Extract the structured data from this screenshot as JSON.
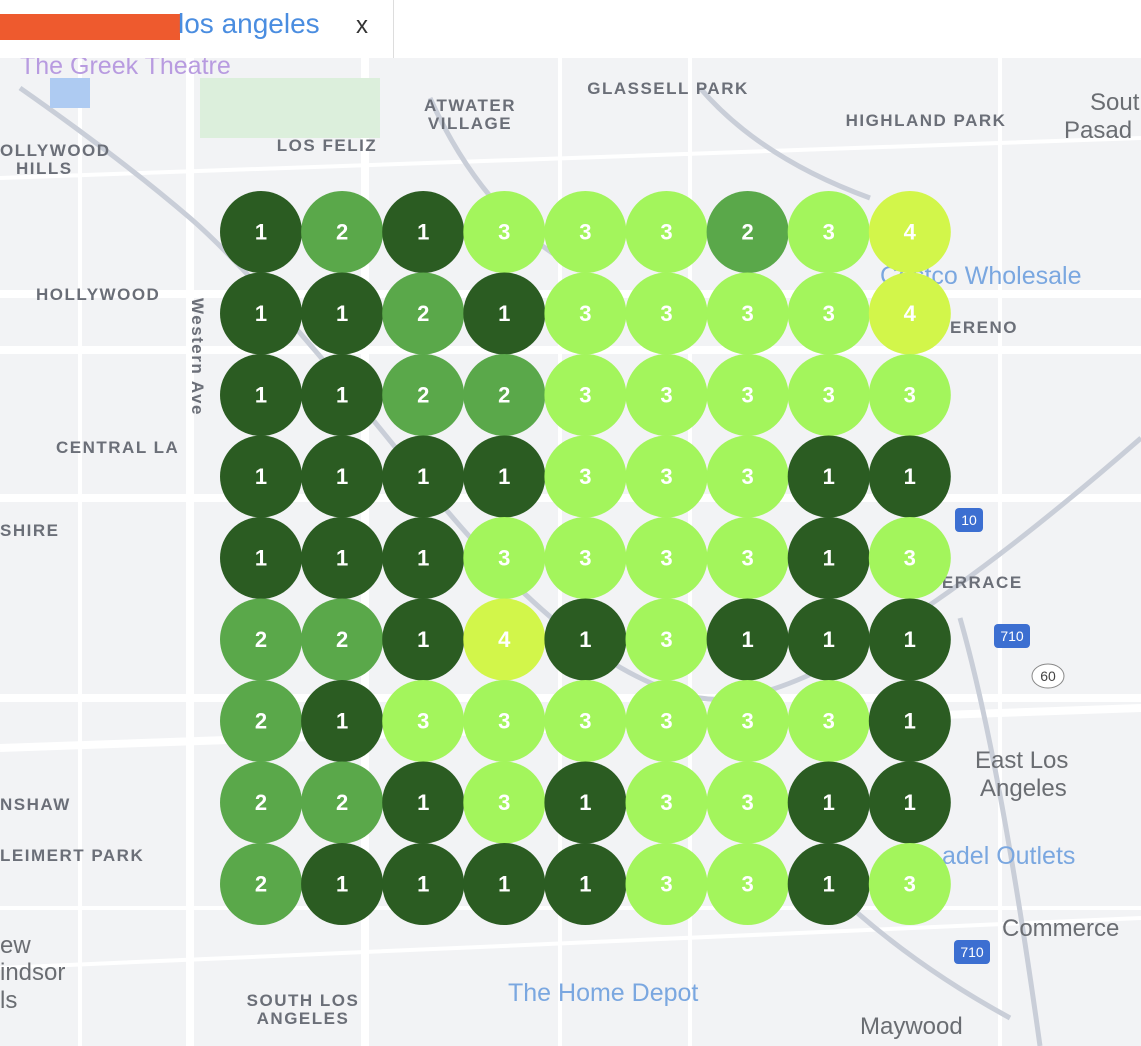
{
  "header": {
    "query": "los angeles",
    "close": "x"
  },
  "map_labels": [
    "The Greek Theatre",
    "ATWATER",
    "VILLAGE",
    "GLASSELL PARK",
    "HIGHLAND PARK",
    "Sout",
    "Pasad",
    "LOS FELIZ",
    "OLLYWOOD",
    "HILLS",
    "HOLLYWOOD",
    "Western Ave",
    "CENTRAL LA",
    "SHIRE",
    "Costco Wholesale",
    "ERENO",
    "East Los",
    "Angeles",
    "adel Outlets",
    "Commerce",
    "Maywood",
    "The Home Depot",
    "SOUTH LOS",
    "ANGELES",
    "LEIMERT PARK",
    "NSHAW",
    "ew",
    "indsor",
    "ls",
    "TERRACE",
    "10",
    "710",
    "60",
    "710"
  ],
  "grid": {
    "rank_colors": {
      "1": "#2b5c22",
      "2": "#5aa84a",
      "3": "#a3f55c",
      "4": "#d2f64a"
    },
    "rows": [
      [
        1,
        2,
        1,
        3,
        3,
        3,
        2,
        3,
        4
      ],
      [
        1,
        1,
        2,
        1,
        3,
        3,
        3,
        3,
        4
      ],
      [
        1,
        1,
        2,
        2,
        3,
        3,
        3,
        3,
        3
      ],
      [
        1,
        1,
        1,
        1,
        3,
        3,
        3,
        1,
        1
      ],
      [
        1,
        1,
        1,
        3,
        3,
        3,
        3,
        1,
        3
      ],
      [
        2,
        2,
        1,
        4,
        1,
        3,
        1,
        1,
        1
      ],
      [
        2,
        1,
        3,
        3,
        3,
        3,
        3,
        3,
        1
      ],
      [
        2,
        2,
        1,
        3,
        1,
        3,
        3,
        1,
        1
      ],
      [
        2,
        1,
        1,
        1,
        1,
        3,
        3,
        1,
        3
      ]
    ]
  }
}
